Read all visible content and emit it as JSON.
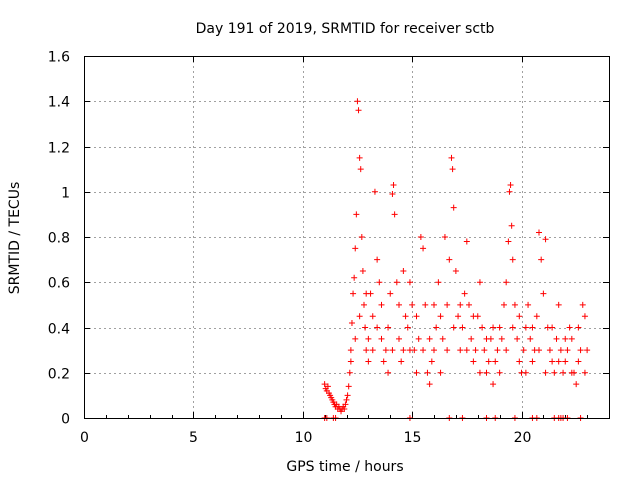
{
  "chart_data": {
    "type": "scatter",
    "title": "Day 191 of 2019, SRMTID for receiver sctb",
    "xlabel": "GPS time / hours",
    "ylabel": "SRMTID / TECUs",
    "xlim": [
      0,
      24
    ],
    "ylim": [
      0,
      1.6
    ],
    "xticks": [
      0,
      5,
      10,
      15,
      20
    ],
    "xtick_labels": [
      "0",
      "5",
      "10",
      "15",
      "20"
    ],
    "yticks": [
      0,
      0.2,
      0.4,
      0.6,
      0.8,
      1.0,
      1.2,
      1.4,
      1.6
    ],
    "ytick_labels": [
      "0",
      "0.2",
      "0.4",
      "0.6",
      "0.8",
      "1",
      "1.2",
      "1.4",
      "1.6"
    ],
    "grid": true,
    "marker": "plus",
    "color": "#ff0000",
    "series": [
      {
        "name": "sctb",
        "points": [
          [
            11.0,
            0.15
          ],
          [
            11.05,
            0.13
          ],
          [
            11.1,
            0.12
          ],
          [
            11.15,
            0.14
          ],
          [
            11.2,
            0.11
          ],
          [
            11.25,
            0.1
          ],
          [
            11.3,
            0.09
          ],
          [
            11.35,
            0.08
          ],
          [
            11.4,
            0.07
          ],
          [
            11.45,
            0.06
          ],
          [
            11.5,
            0.05
          ],
          [
            11.55,
            0.06
          ],
          [
            11.6,
            0.04
          ],
          [
            11.65,
            0.05
          ],
          [
            11.7,
            0.04
          ],
          [
            11.75,
            0.03
          ],
          [
            11.8,
            0.04
          ],
          [
            11.85,
            0.05
          ],
          [
            11.9,
            0.04
          ],
          [
            11.95,
            0.06
          ],
          [
            12.0,
            0.08
          ],
          [
            12.05,
            0.1
          ],
          [
            12.1,
            0.14
          ],
          [
            12.15,
            0.2
          ],
          [
            12.2,
            0.3
          ],
          [
            12.25,
            0.42
          ],
          [
            12.3,
            0.55
          ],
          [
            12.35,
            0.62
          ],
          [
            12.4,
            0.75
          ],
          [
            12.45,
            0.9
          ],
          [
            12.5,
            1.4
          ],
          [
            12.55,
            1.36
          ],
          [
            12.6,
            1.15
          ],
          [
            12.65,
            1.1
          ],
          [
            12.7,
            0.8
          ],
          [
            12.75,
            0.65
          ],
          [
            12.8,
            0.5
          ],
          [
            12.85,
            0.4
          ],
          [
            12.9,
            0.3
          ],
          [
            13.0,
            0.35
          ],
          [
            13.1,
            0.55
          ],
          [
            13.2,
            0.45
          ],
          [
            13.3,
            1.0
          ],
          [
            13.4,
            0.7
          ],
          [
            13.5,
            0.6
          ],
          [
            13.6,
            0.35
          ],
          [
            13.7,
            0.25
          ],
          [
            13.8,
            0.3
          ],
          [
            13.9,
            0.4
          ],
          [
            14.0,
            0.55
          ],
          [
            14.1,
            0.99
          ],
          [
            14.15,
            1.03
          ],
          [
            14.2,
            0.9
          ],
          [
            14.3,
            0.6
          ],
          [
            14.4,
            0.35
          ],
          [
            14.5,
            0.25
          ],
          [
            14.6,
            0.3
          ],
          [
            14.7,
            0.45
          ],
          [
            14.8,
            0.4
          ],
          [
            14.9,
            0.6
          ],
          [
            15.0,
            0.5
          ],
          [
            15.1,
            0.3
          ],
          [
            15.2,
            0.2
          ],
          [
            15.3,
            0.35
          ],
          [
            15.4,
            0.8
          ],
          [
            15.5,
            0.75
          ],
          [
            15.6,
            0.5
          ],
          [
            15.7,
            0.2
          ],
          [
            15.8,
            0.15
          ],
          [
            15.9,
            0.25
          ],
          [
            16.0,
            0.3
          ],
          [
            16.1,
            0.4
          ],
          [
            16.2,
            0.6
          ],
          [
            16.3,
            0.45
          ],
          [
            16.4,
            0.35
          ],
          [
            16.5,
            0.8
          ],
          [
            16.6,
            0.5
          ],
          [
            16.7,
            0.7
          ],
          [
            16.8,
            1.15
          ],
          [
            16.85,
            1.1
          ],
          [
            16.9,
            0.93
          ],
          [
            17.0,
            0.65
          ],
          [
            17.1,
            0.45
          ],
          [
            17.2,
            0.3
          ],
          [
            17.3,
            0.4
          ],
          [
            17.4,
            0.55
          ],
          [
            17.5,
            0.78
          ],
          [
            17.6,
            0.5
          ],
          [
            17.7,
            0.35
          ],
          [
            17.8,
            0.25
          ],
          [
            17.9,
            0.3
          ],
          [
            18.0,
            0.45
          ],
          [
            18.1,
            0.6
          ],
          [
            18.2,
            0.4
          ],
          [
            18.3,
            0.3
          ],
          [
            18.4,
            0.2
          ],
          [
            18.5,
            0.25
          ],
          [
            18.6,
            0.35
          ],
          [
            18.7,
            0.15
          ],
          [
            18.8,
            0.25
          ],
          [
            18.9,
            0.3
          ],
          [
            19.0,
            0.4
          ],
          [
            19.1,
            0.35
          ],
          [
            19.2,
            0.5
          ],
          [
            19.3,
            0.6
          ],
          [
            19.4,
            0.78
          ],
          [
            19.45,
            1.0
          ],
          [
            19.5,
            1.03
          ],
          [
            19.55,
            0.85
          ],
          [
            19.6,
            0.7
          ],
          [
            19.7,
            0.5
          ],
          [
            19.8,
            0.35
          ],
          [
            19.9,
            0.25
          ],
          [
            20.0,
            0.2
          ],
          [
            20.1,
            0.3
          ],
          [
            20.2,
            0.4
          ],
          [
            20.3,
            0.5
          ],
          [
            20.4,
            0.35
          ],
          [
            20.5,
            0.25
          ],
          [
            20.6,
            0.3
          ],
          [
            20.7,
            0.45
          ],
          [
            20.8,
            0.82
          ],
          [
            20.9,
            0.7
          ],
          [
            21.0,
            0.55
          ],
          [
            21.1,
            0.79
          ],
          [
            21.2,
            0.4
          ],
          [
            21.3,
            0.3
          ],
          [
            21.4,
            0.25
          ],
          [
            21.5,
            0.2
          ],
          [
            21.6,
            0.35
          ],
          [
            21.7,
            0.5
          ],
          [
            21.8,
            0.3
          ],
          [
            21.9,
            0.2
          ],
          [
            22.0,
            0.25
          ],
          [
            22.1,
            0.3
          ],
          [
            22.2,
            0.4
          ],
          [
            22.3,
            0.35
          ],
          [
            22.4,
            0.2
          ],
          [
            22.5,
            0.15
          ],
          [
            22.6,
            0.25
          ],
          [
            22.7,
            0.3
          ],
          [
            22.8,
            0.5
          ],
          [
            22.9,
            0.45
          ],
          [
            23.0,
            0.3
          ],
          [
            12.2,
            0.25
          ],
          [
            12.4,
            0.35
          ],
          [
            12.6,
            0.45
          ],
          [
            12.9,
            0.55
          ],
          [
            13.0,
            0.25
          ],
          [
            13.2,
            0.3
          ],
          [
            13.4,
            0.4
          ],
          [
            13.6,
            0.5
          ],
          [
            13.9,
            0.2
          ],
          [
            14.1,
            0.3
          ],
          [
            14.4,
            0.5
          ],
          [
            14.6,
            0.65
          ],
          [
            14.9,
            0.3
          ],
          [
            15.2,
            0.45
          ],
          [
            15.5,
            0.3
          ],
          [
            15.8,
            0.35
          ],
          [
            16.0,
            0.5
          ],
          [
            16.3,
            0.2
          ],
          [
            16.6,
            0.3
          ],
          [
            16.9,
            0.4
          ],
          [
            17.2,
            0.5
          ],
          [
            17.5,
            0.3
          ],
          [
            17.8,
            0.45
          ],
          [
            18.1,
            0.2
          ],
          [
            18.4,
            0.35
          ],
          [
            18.7,
            0.4
          ],
          [
            19.0,
            0.2
          ],
          [
            19.3,
            0.3
          ],
          [
            19.6,
            0.4
          ],
          [
            19.9,
            0.45
          ],
          [
            20.2,
            0.2
          ],
          [
            20.5,
            0.4
          ],
          [
            20.8,
            0.3
          ],
          [
            21.1,
            0.2
          ],
          [
            21.4,
            0.4
          ],
          [
            21.7,
            0.25
          ],
          [
            22.0,
            0.35
          ],
          [
            22.3,
            0.2
          ],
          [
            22.6,
            0.4
          ],
          [
            22.9,
            0.2
          ],
          [
            11.0,
            0.0
          ],
          [
            11.1,
            0.0
          ],
          [
            11.4,
            0.0
          ],
          [
            11.5,
            0.0
          ],
          [
            14.9,
            0.0
          ],
          [
            16.7,
            0.0
          ],
          [
            17.3,
            0.0
          ],
          [
            18.4,
            0.0
          ],
          [
            18.8,
            0.0
          ],
          [
            19.7,
            0.0
          ],
          [
            20.5,
            0.0
          ],
          [
            20.7,
            0.0
          ],
          [
            21.5,
            0.0
          ],
          [
            21.7,
            0.0
          ],
          [
            21.8,
            0.0
          ],
          [
            21.9,
            0.0
          ],
          [
            22.1,
            0.0
          ],
          [
            22.7,
            0.0
          ]
        ]
      }
    ]
  }
}
